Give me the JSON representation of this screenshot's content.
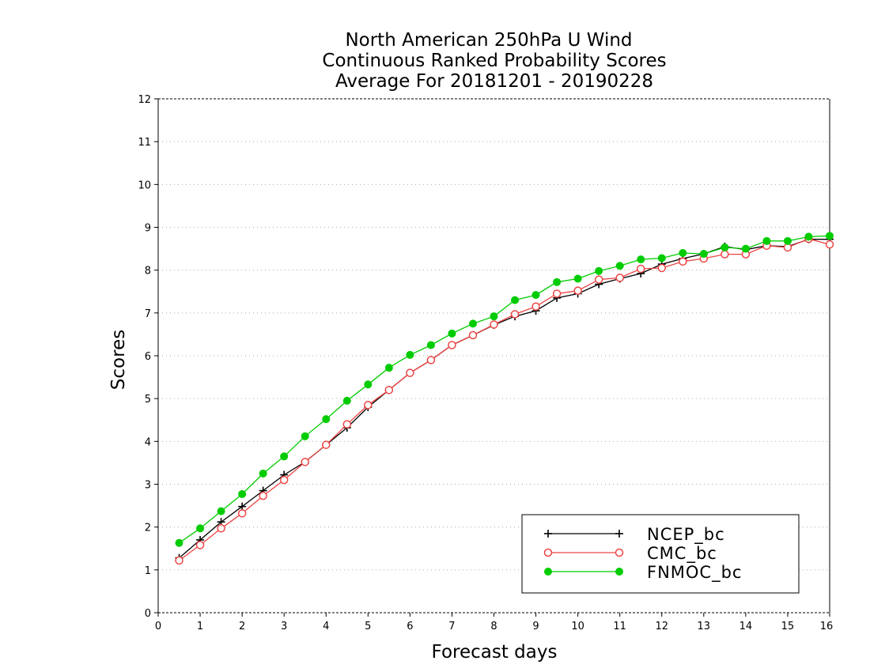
{
  "chart_data": {
    "type": "line",
    "title_lines": [
      "North American 250hPa U Wind",
      "Continuous Ranked Probability Scores",
      "Average For 20181201 - 20190228"
    ],
    "xlabel": "Forecast days",
    "ylabel": "Scores",
    "xlim": [
      0,
      16
    ],
    "ylim": [
      0,
      12
    ],
    "xticks": [
      0,
      1,
      2,
      3,
      4,
      5,
      6,
      7,
      8,
      9,
      10,
      11,
      12,
      13,
      14,
      15,
      16
    ],
    "yticks": [
      0,
      1,
      2,
      3,
      4,
      5,
      6,
      7,
      8,
      9,
      10,
      11,
      12
    ],
    "grid": "horizontal dotted",
    "legend_position": "bottom-right",
    "x": [
      0.5,
      1,
      1.5,
      2,
      2.5,
      3,
      3.5,
      4,
      4.5,
      5,
      5.5,
      6,
      6.5,
      7,
      7.5,
      8,
      8.5,
      9,
      9.5,
      10,
      10.5,
      11,
      11.5,
      12,
      12.5,
      13,
      13.5,
      14,
      14.5,
      15,
      15.5,
      16
    ],
    "series": [
      {
        "name": "NCEP_bc",
        "color": "#000000",
        "marker": "plus",
        "values": [
          1.28,
          1.7,
          2.12,
          2.48,
          2.85,
          3.22,
          3.52,
          3.92,
          4.32,
          4.8,
          5.2,
          5.6,
          5.9,
          6.25,
          6.48,
          6.72,
          6.92,
          7.05,
          7.35,
          7.45,
          7.67,
          7.8,
          7.92,
          8.14,
          8.27,
          8.38,
          8.55,
          8.48,
          8.57,
          8.55,
          8.72,
          8.72
        ]
      },
      {
        "name": "CMC_bc",
        "color": "#ee4444",
        "marker": "open-circle",
        "values": [
          1.22,
          1.58,
          1.97,
          2.32,
          2.73,
          3.1,
          3.52,
          3.92,
          4.4,
          4.85,
          5.2,
          5.6,
          5.9,
          6.25,
          6.48,
          6.73,
          6.97,
          7.15,
          7.45,
          7.52,
          7.78,
          7.82,
          8.03,
          8.05,
          8.2,
          8.27,
          8.37,
          8.37,
          8.57,
          8.53,
          8.73,
          8.6
        ]
      },
      {
        "name": "FNMOC_bc",
        "color": "#00cc00",
        "marker": "filled-circle",
        "values": [
          1.63,
          1.97,
          2.37,
          2.77,
          3.25,
          3.65,
          4.12,
          4.52,
          4.95,
          5.33,
          5.72,
          6.02,
          6.25,
          6.52,
          6.75,
          6.92,
          7.3,
          7.42,
          7.72,
          7.8,
          7.98,
          8.1,
          8.25,
          8.28,
          8.4,
          8.38,
          8.53,
          8.5,
          8.68,
          8.68,
          8.78,
          8.8
        ]
      }
    ]
  }
}
